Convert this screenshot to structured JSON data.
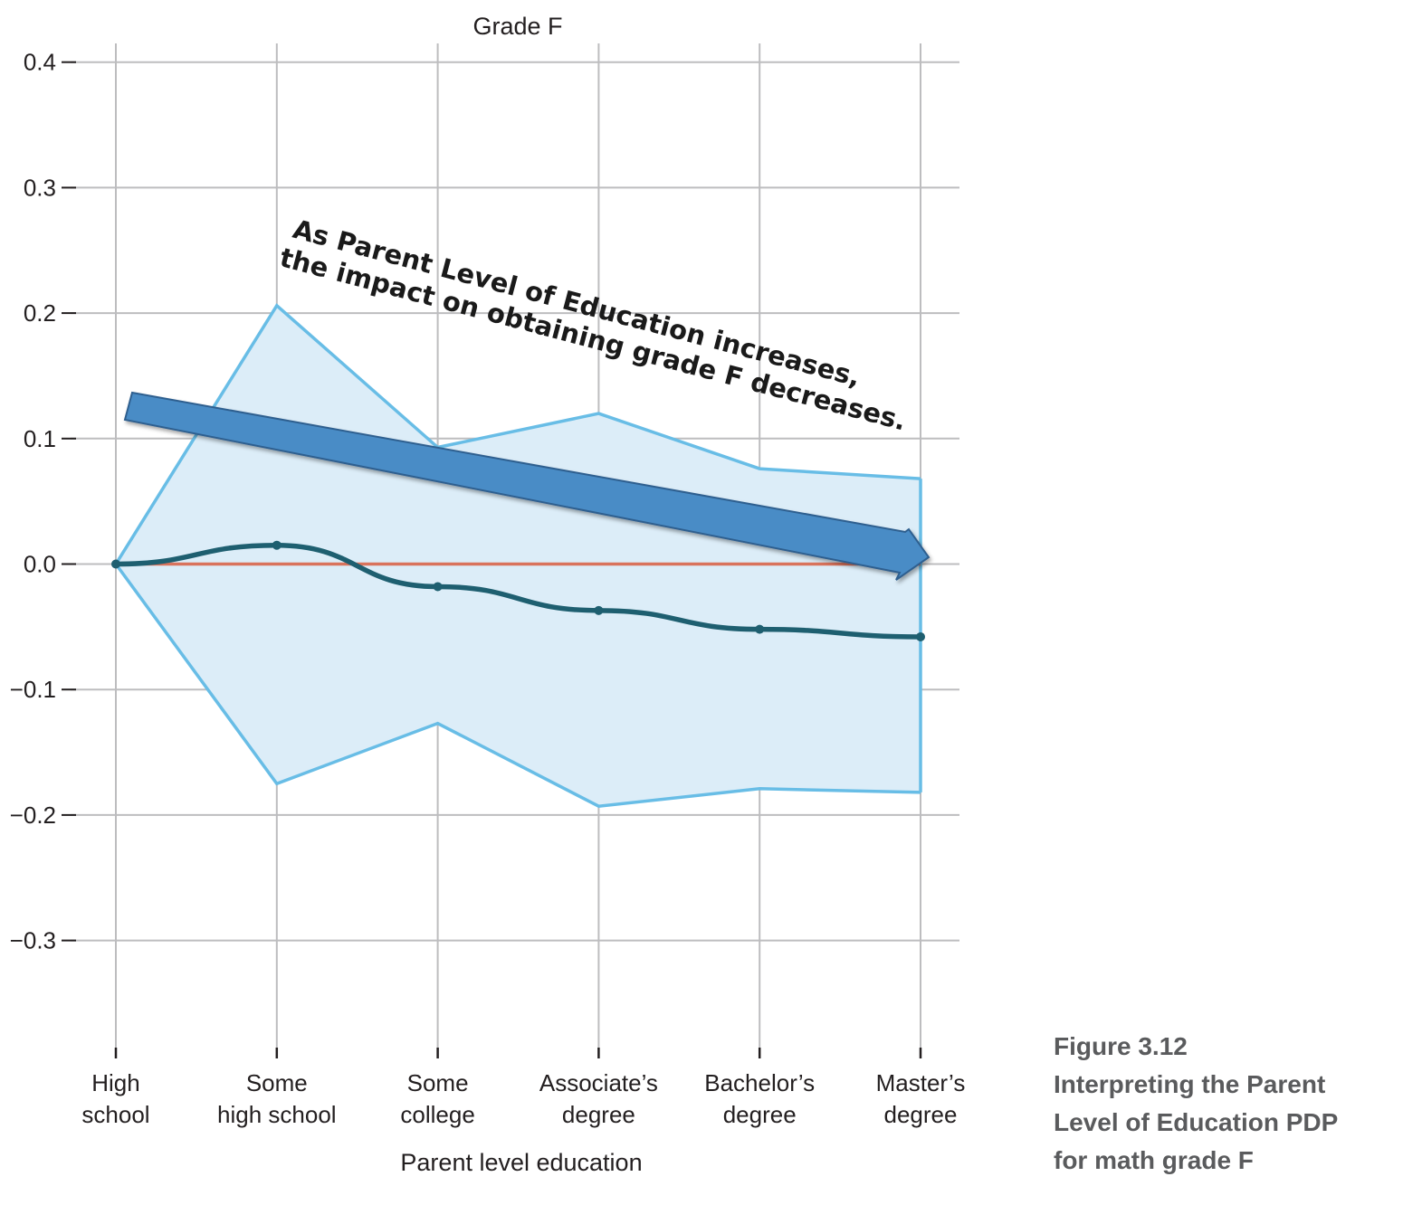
{
  "chart_data": {
    "type": "line",
    "title": "Grade F",
    "xlabel": "Parent level education",
    "ylabel": "",
    "categories": [
      [
        "High",
        "school"
      ],
      [
        "Some",
        "high school"
      ],
      [
        "Some",
        "college"
      ],
      [
        "Associate’s",
        "degree"
      ],
      [
        "Bachelor’s",
        "degree"
      ],
      [
        "Master’s",
        "degree"
      ]
    ],
    "ylim": [
      -0.39,
      0.41
    ],
    "yticks": [
      0.4,
      0.3,
      0.2,
      0.1,
      0.0,
      -0.1,
      -0.2,
      -0.3
    ],
    "ytick_labels": [
      "0.4",
      "0.3",
      "0.2",
      "0.1",
      "0.0",
      "−0.1",
      "−0.2",
      "−0.3"
    ],
    "grid": true,
    "series": [
      {
        "values": [
          0.0,
          0.015,
          -0.018,
          -0.037,
          -0.052,
          -0.058
        ],
        "color": "#1e5f70"
      }
    ],
    "band": {
      "upper": [
        0.0,
        0.206,
        0.093,
        0.12,
        0.076,
        0.068
      ],
      "lower": [
        0.0,
        -0.175,
        -0.127,
        -0.193,
        -0.179,
        -0.182
      ],
      "fill": "#dcedf8",
      "stroke": "#68bde6"
    },
    "reference_line": {
      "y": 0.0,
      "color": "#d9735c"
    },
    "annotation": {
      "lines": [
        "As Parent Level of Education increases,",
        "the impact on obtaining grade F decreases."
      ],
      "arrow_color": "#4a8cc6"
    }
  },
  "caption": {
    "lines": [
      "Figure 3.12",
      "Interpreting the Parent",
      "Level of Education PDP",
      "for math grade F"
    ]
  }
}
